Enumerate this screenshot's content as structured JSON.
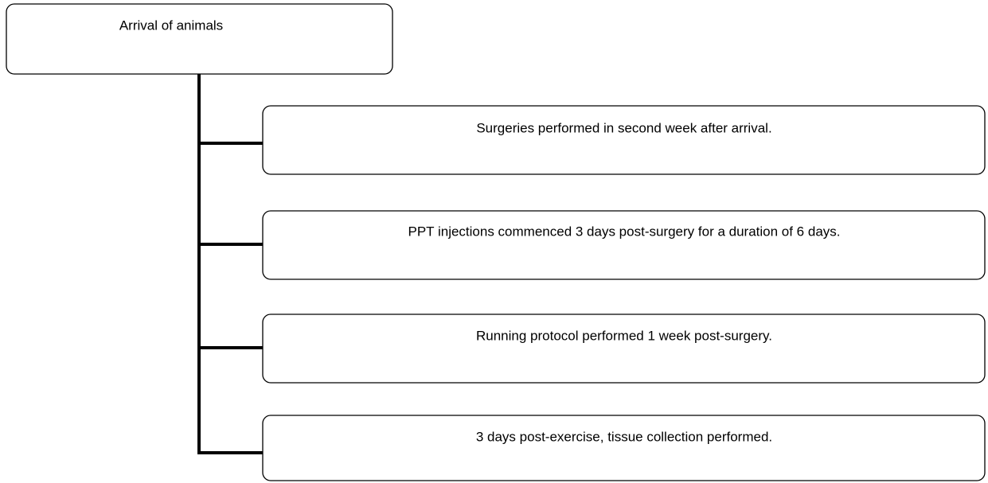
{
  "nodes": [
    {
      "label": "Arrival of animals"
    },
    {
      "label": "Surgeries performed in second week after arrival."
    },
    {
      "label": "PPT injections commenced 3 days post-surgery for a duration of 6 days."
    },
    {
      "label": "Running protocol performed 1 week post-surgery."
    },
    {
      "label": "3 days post-exercise, tissue collection performed."
    }
  ]
}
